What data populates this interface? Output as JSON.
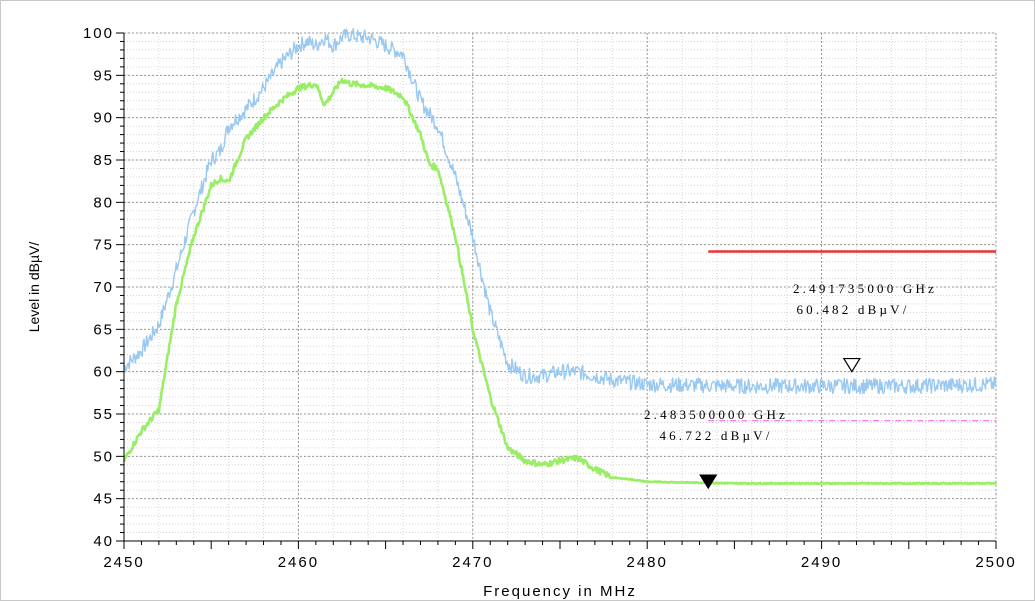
{
  "chart_data": {
    "type": "line",
    "xlabel": "Frequency in MHz",
    "ylabel": "Level in dBµV/",
    "xlim": [
      2450,
      2500
    ],
    "ylim": [
      40,
      100
    ],
    "x_ticks": [
      2450,
      2460,
      2470,
      2480,
      2490,
      2500
    ],
    "y_ticks": [
      40,
      45,
      50,
      55,
      60,
      65,
      70,
      75,
      80,
      85,
      90,
      95,
      100
    ],
    "grid": true,
    "series": [
      {
        "color": "#99c8f0",
        "x": [
          2450,
          2451,
          2452,
          2453,
          2454,
          2455,
          2455.5,
          2456,
          2457,
          2458,
          2459,
          2460,
          2460.5,
          2461,
          2461.5,
          2462,
          2462.5,
          2463,
          2463.5,
          2464,
          2465,
          2466,
          2467,
          2468,
          2469,
          2470,
          2471,
          2472,
          2473,
          2474,
          2475,
          2476,
          2477,
          2478,
          2480,
          2485,
          2490,
          2495,
          2500
        ],
        "y": [
          60.5,
          62.5,
          65.5,
          72,
          79,
          85,
          86,
          89,
          91,
          93.5,
          96.5,
          98.5,
          99,
          98.5,
          99.5,
          98.5,
          99.5,
          99.8,
          99.5,
          99.5,
          98.5,
          97.5,
          92,
          89,
          83,
          76,
          67,
          61,
          59.5,
          59.5,
          60,
          60,
          59.5,
          59,
          58.5,
          58.3,
          58.3,
          58.3,
          58.5
        ]
      },
      {
        "color": "#99ee66",
        "x": [
          2450,
          2451,
          2452,
          2453,
          2454,
          2455,
          2455.5,
          2456,
          2457,
          2458,
          2459,
          2460,
          2461,
          2461.5,
          2462,
          2462.5,
          2463,
          2464,
          2465,
          2466,
          2467,
          2467.5,
          2468,
          2469,
          2470,
          2471,
          2472,
          2473,
          2474,
          2475,
          2476,
          2477,
          2478,
          2479,
          2480,
          2485,
          2490,
          2495,
          2500
        ],
        "y": [
          49.5,
          53,
          55.5,
          68,
          76,
          82,
          82.8,
          82.5,
          87.5,
          90,
          92,
          93.5,
          94,
          91.5,
          93,
          94.5,
          94,
          93.8,
          93.5,
          92.5,
          88,
          84.5,
          84,
          76,
          65,
          57,
          51,
          49.5,
          49,
          49.5,
          49.8,
          48.5,
          47.5,
          47.3,
          47.0,
          46.8,
          46.8,
          46.8,
          46.8
        ]
      }
    ],
    "limit_lines": [
      {
        "color": "#ee3333",
        "value": 74.2,
        "x_start": 2483.5,
        "x_end": 2500,
        "style": "solid"
      },
      {
        "color": "#ee55dd",
        "value": 54.2,
        "x_start": 2483.5,
        "x_end": 2500,
        "style": "dashdot"
      }
    ],
    "markers": [
      {
        "x": 2483.5,
        "y": 46.722,
        "style": "filled-triangle",
        "freq_label": "2.483500000 GHz",
        "level_label": "46.722 dBµV/"
      },
      {
        "x": 2491.735,
        "y": 60.482,
        "style": "open-triangle",
        "freq_label": "2.491735000 GHz",
        "level_label": "60.482 dBµV/"
      }
    ]
  }
}
